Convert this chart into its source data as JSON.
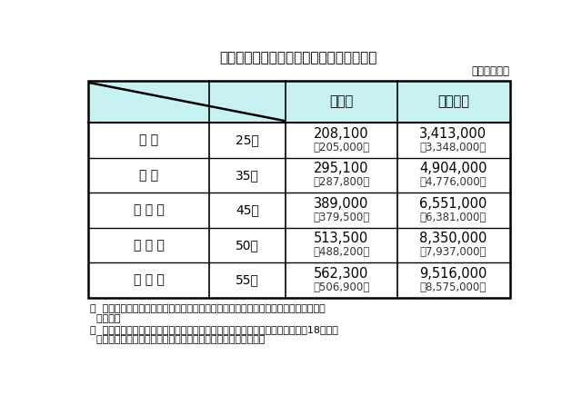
{
  "title": "【行政職給料表適用職員のモデル給与例】",
  "unit_label": "（単位：円）",
  "header_row": [
    "月　額",
    "年間給与"
  ],
  "rows": [
    {
      "role": "係 員",
      "age": "25歳",
      "monthly": "208,100",
      "monthly_sub": "（205,000）",
      "annual": "3,413,000",
      "annual_sub": "（3,348,000）"
    },
    {
      "role": "主 任",
      "age": "35歳",
      "monthly": "295,100",
      "monthly_sub": "（287,800）",
      "annual": "4,904,000",
      "annual_sub": "（4,776,000）"
    },
    {
      "role": "補 佐 級",
      "age": "45歳",
      "monthly": "389,000",
      "monthly_sub": "（379,500）",
      "annual": "6,551,000",
      "annual_sub": "（6,381,000）"
    },
    {
      "role": "課 長 級",
      "age": "50歳",
      "monthly": "513,500",
      "monthly_sub": "（488,200）",
      "annual": "8,350,000",
      "annual_sub": "（7,937,000）"
    },
    {
      "role": "部 長 級",
      "age": "55歳",
      "monthly": "562,300",
      "monthly_sub": "（506,900）",
      "annual": "9,516,000",
      "annual_sub": "（8,575,000）"
    }
  ],
  "footnote1": "〇  モデル給与の月額及び年間給与は、給料、地域手当、管理職手当を基礎に算出して",
  "footnote1b": "  います。",
  "footnote2": "〇  職員の給与は、「知事等の給与の特例に関する条例（令和元年新潟県条例第18号）」",
  "footnote2b": "  により減額されており、（　）内の額は減額措置後の額です。",
  "border_color": "#000000",
  "text_color": "#000000",
  "sub_text_color": "#333333",
  "background_white": "#ffffff",
  "header_light_blue": "#c8f2f2"
}
